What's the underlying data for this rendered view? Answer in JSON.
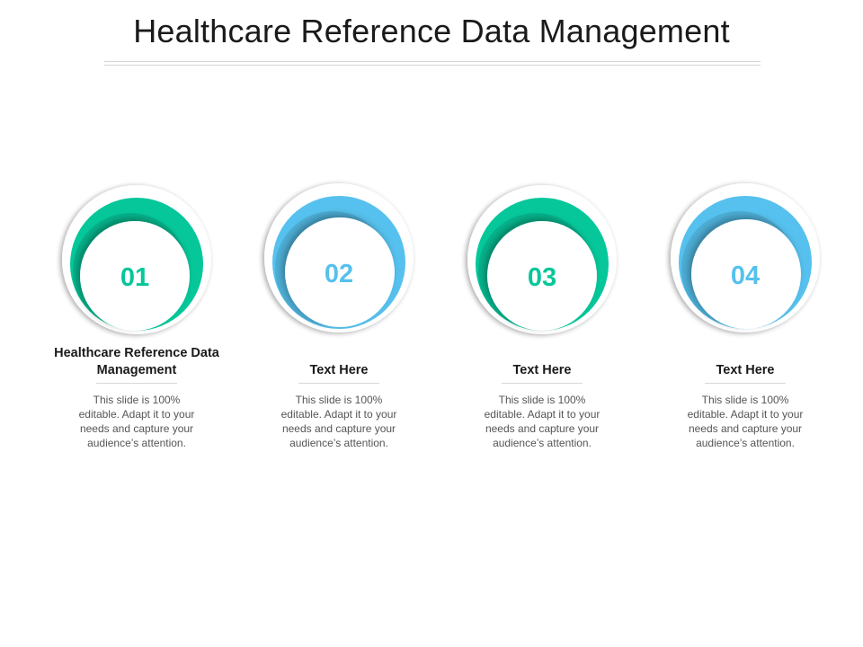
{
  "title": "Healthcare Reference Data Management",
  "colors": {
    "teal": "#06c79a",
    "blue": "#56c1ee",
    "text": "#1a1a1a",
    "body_text": "#555555"
  },
  "steps": [
    {
      "number": "01",
      "heading": "Healthcare Reference Data Management",
      "body": "This slide is 100% editable. Adapt it to your needs and capture your audience’s attention.",
      "color": "#06c79a"
    },
    {
      "number": "02",
      "heading": "Text Here",
      "body": "This slide is 100% editable. Adapt it to your needs and capture your audience’s attention.",
      "color": "#56c1ee"
    },
    {
      "number": "03",
      "heading": "Text Here",
      "body": "This slide is 100% editable. Adapt it to your needs and capture your audience’s attention.",
      "color": "#06c79a"
    },
    {
      "number": "04",
      "heading": "Text Here",
      "body": "This slide is 100% editable. Adapt it to your needs and capture your audience’s attention.",
      "color": "#56c1ee"
    }
  ]
}
